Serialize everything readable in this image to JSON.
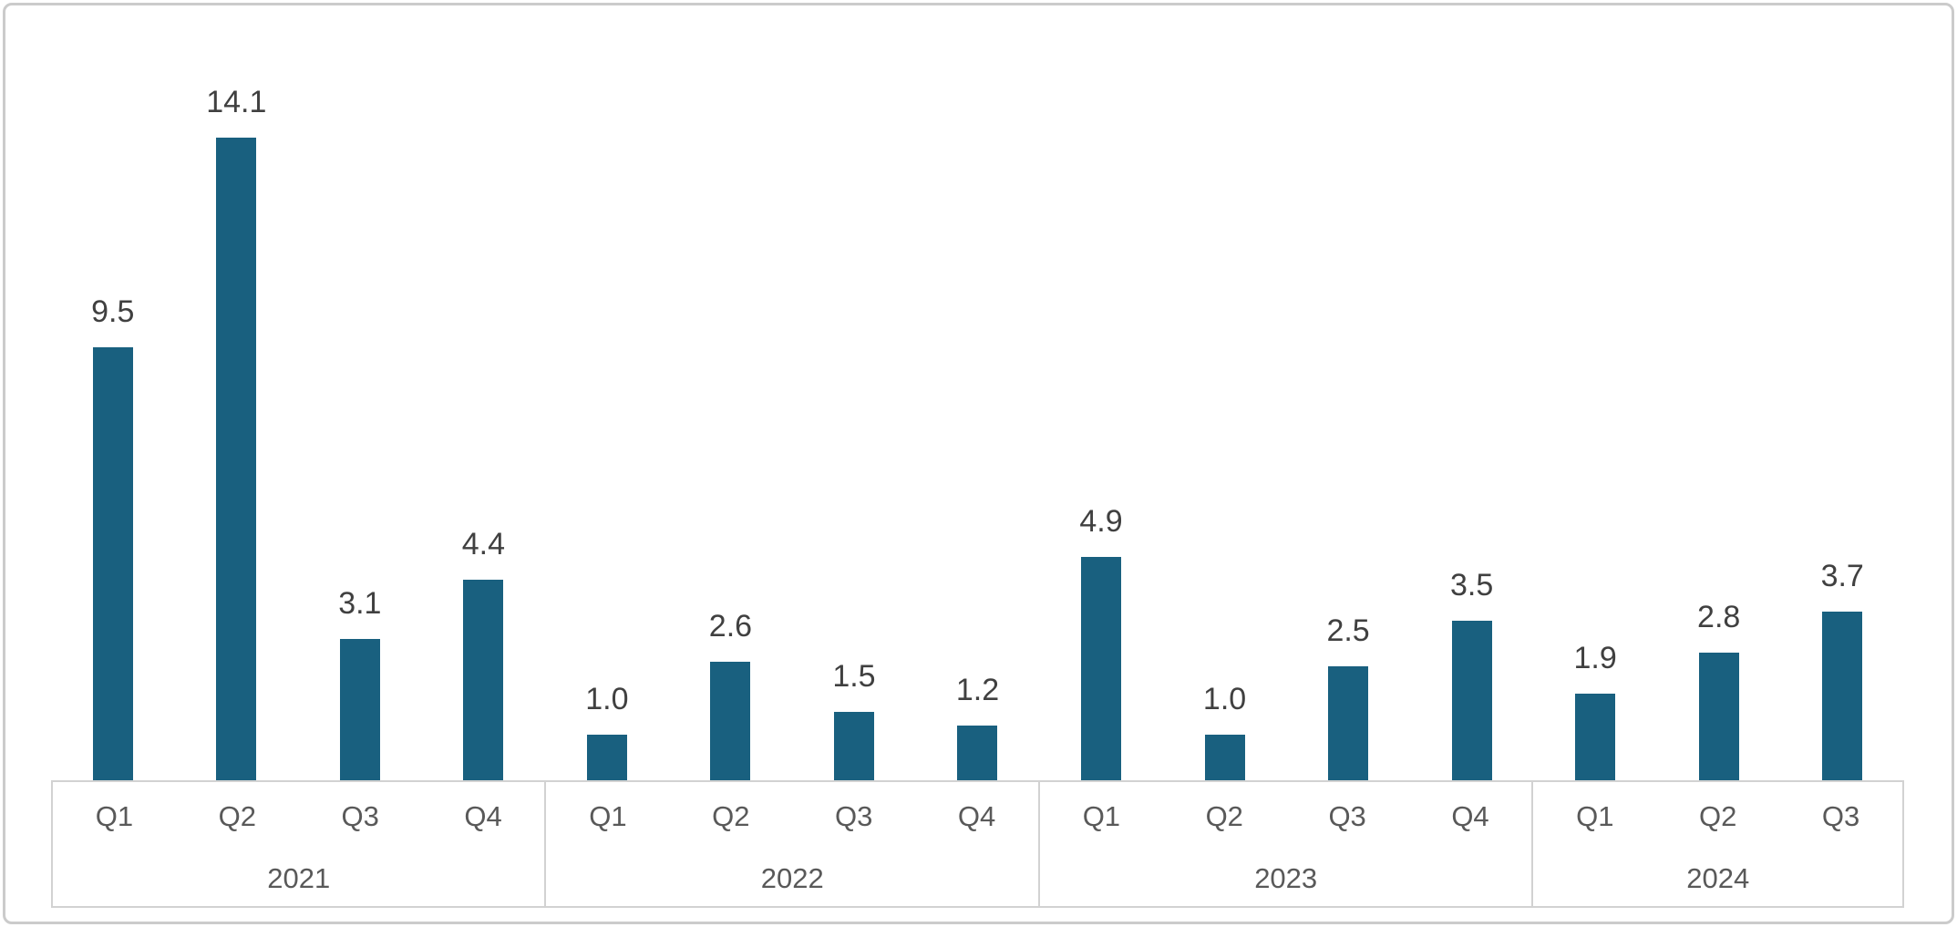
{
  "chart_data": {
    "type": "bar",
    "title": "",
    "xlabel": "",
    "ylabel": "",
    "ylim": [
      0,
      15.8
    ],
    "grid": false,
    "legend": "none",
    "value_labels_shown": true,
    "bar_color": "#19607F",
    "value_label_color": "#404040",
    "axis_label_color": "#595959",
    "axis_line_color": "#D2D2D2",
    "frame_border_color": "#CBCBCB",
    "categories": [
      "Q1",
      "Q2",
      "Q3",
      "Q4",
      "Q1",
      "Q2",
      "Q3",
      "Q4",
      "Q1",
      "Q2",
      "Q3",
      "Q4",
      "Q1",
      "Q2",
      "Q3"
    ],
    "values": [
      9.5,
      14.1,
      3.1,
      4.4,
      1.0,
      2.6,
      1.5,
      1.2,
      4.9,
      1.0,
      2.5,
      3.5,
      1.9,
      2.8,
      3.7
    ],
    "groups": [
      {
        "year": "2021",
        "quarters": [
          "Q1",
          "Q2",
          "Q3",
          "Q4"
        ],
        "values": [
          9.5,
          14.1,
          3.1,
          4.4
        ],
        "labels": [
          "9.5",
          "14.1",
          "3.1",
          "4.4"
        ]
      },
      {
        "year": "2022",
        "quarters": [
          "Q1",
          "Q2",
          "Q3",
          "Q4"
        ],
        "values": [
          1.0,
          2.6,
          1.5,
          1.2
        ],
        "labels": [
          "1.0",
          "2.6",
          "1.5",
          "1.2"
        ]
      },
      {
        "year": "2023",
        "quarters": [
          "Q1",
          "Q2",
          "Q3",
          "Q4"
        ],
        "values": [
          4.9,
          1.0,
          2.5,
          3.5
        ],
        "labels": [
          "4.9",
          "1.0",
          "2.5",
          "3.5"
        ]
      },
      {
        "year": "2024",
        "quarters": [
          "Q1",
          "Q2",
          "Q3"
        ],
        "values": [
          1.9,
          2.8,
          3.7
        ],
        "labels": [
          "1.9",
          "2.8",
          "3.7"
        ]
      }
    ]
  }
}
